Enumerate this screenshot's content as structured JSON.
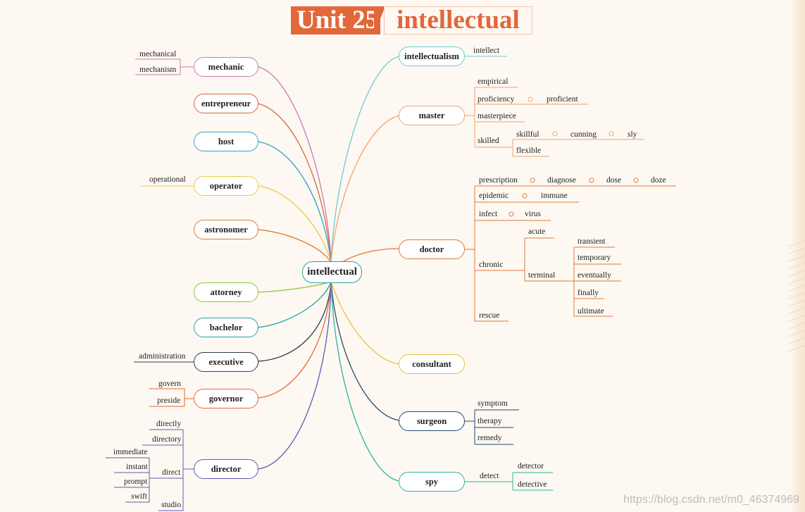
{
  "banner": {
    "unit": "Unit 25",
    "word": "intellectual"
  },
  "center": "intellectual",
  "left_nodes": {
    "mechanic": "mechanic",
    "entrepreneur": "entrepreneur",
    "host": "host",
    "operator": "operator",
    "astronomer": "astronomer",
    "attorney": "attorney",
    "bachelor": "bachelor",
    "executive": "executive",
    "governor": "governor",
    "director": "director"
  },
  "right_nodes": {
    "intellectualism": "intellectualism",
    "master": "master",
    "doctor": "doctor",
    "consultant": "consultant",
    "surgeon": "surgeon",
    "spy": "spy"
  },
  "branch_colors": {
    "mechanic": "#c97bb5",
    "entrepreneur": "#d9653b",
    "host": "#2aa5c8",
    "operator": "#ecc94b",
    "astronomer": "#e07a36",
    "attorney": "#8cc63f",
    "bachelor": "#1fa3a8",
    "executive": "#2c3e50",
    "governor": "#e86a36",
    "director": "#5b5fb2",
    "intellectualism": "#71c9d6",
    "master": "#f0a271",
    "doctor": "#e07a3a",
    "consultant": "#ebc23e",
    "surgeon": "#234a6d",
    "spy": "#2bb3a3"
  },
  "words": {
    "mechanical": "mechanical",
    "mechanism": "mechanism",
    "operational": "operational",
    "administration": "administration",
    "govern": "govern",
    "preside": "preside",
    "directly": "directly",
    "directory": "directory",
    "immediate": "immediate",
    "instant": "instant",
    "prompt": "prompt",
    "swift": "swift",
    "direct": "direct",
    "studio": "studio",
    "intellect": "intellect",
    "empirical": "empirical",
    "proficiency": "proficiency",
    "proficient": "proficient",
    "masterpiece": "masterpiece",
    "skilled": "skilled",
    "skillful": "skillful",
    "cunning": "cunning",
    "sly": "sly",
    "flexible": "flexible",
    "prescription": "prescription",
    "diagnose": "diagnose",
    "dose": "dose",
    "doze": "doze",
    "epidemic": "epidemic",
    "immune": "immune",
    "infect": "infect",
    "virus": "virus",
    "chronic": "chronic",
    "acute": "acute",
    "terminal": "terminal",
    "transient": "transient",
    "temporary": "temporary",
    "eventually": "eventually",
    "finally": "finally",
    "ultimate": "ultimate",
    "rescue": "rescue",
    "symptom": "symptom",
    "therapy": "therapy",
    "remedy": "remedy",
    "detect": "detect",
    "detector": "detector",
    "detective": "detective"
  },
  "footer": "https://blog.csdn.net/m0_46374969"
}
